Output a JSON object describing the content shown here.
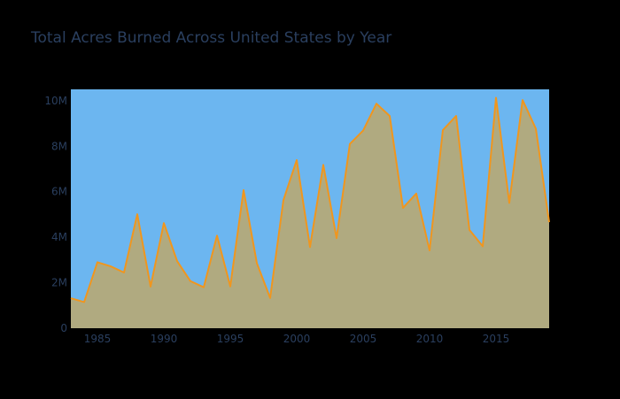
{
  "chart_data": {
    "type": "area",
    "title": "Total Acres Burned Across United States by Year",
    "xlabel": "",
    "ylabel": "",
    "x": [
      1983,
      1984,
      1985,
      1986,
      1987,
      1988,
      1989,
      1990,
      1991,
      1992,
      1993,
      1994,
      1995,
      1996,
      1997,
      1998,
      1999,
      2000,
      2001,
      2002,
      2003,
      2004,
      2005,
      2006,
      2007,
      2008,
      2009,
      2010,
      2011,
      2012,
      2013,
      2014,
      2015,
      2016,
      2017,
      2018,
      2019
    ],
    "values": [
      1320000,
      1150000,
      2900000,
      2720000,
      2450000,
      5010000,
      1830000,
      4620000,
      2950000,
      2070000,
      1800000,
      4070000,
      1840000,
      6070000,
      2860000,
      1330000,
      5630000,
      7390000,
      3570000,
      7180000,
      3960000,
      8100000,
      8690000,
      9870000,
      9330000,
      5290000,
      5920000,
      3420000,
      8710000,
      9330000,
      4320000,
      3600000,
      10130000,
      5510000,
      10030000,
      8770000,
      4660000
    ],
    "xlim": [
      1983,
      2019
    ],
    "ylim": [
      0,
      10500000
    ],
    "x_ticks": [
      1985,
      1990,
      1995,
      2000,
      2005,
      2010,
      2015
    ],
    "y_ticks": [
      0,
      2000000,
      4000000,
      6000000,
      8000000,
      10000000
    ],
    "y_tick_labels": [
      "0",
      "2M",
      "4M",
      "6M",
      "8M",
      "10M"
    ],
    "grid": false,
    "legend": "none",
    "colors": {
      "page_background": "#000000",
      "plot_background": "#6cb6f0",
      "area_fill": "#b0aa80",
      "line": "#f0961e",
      "text": "#2a3f5f"
    }
  }
}
